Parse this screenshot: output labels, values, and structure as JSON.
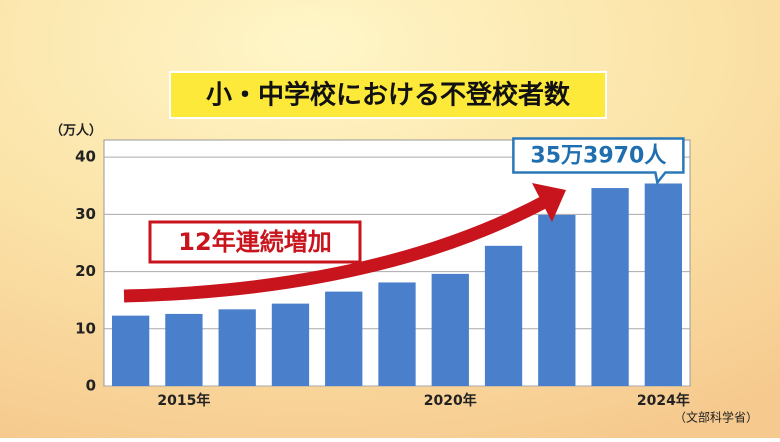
{
  "chart_data": {
    "type": "bar",
    "title": "小・中学校における不登校者数",
    "y_axis_label": "（万人）",
    "annotation": "12年連続増加",
    "source": "（文部科学省）",
    "categories": [
      null,
      "2015年",
      null,
      null,
      null,
      null,
      "2020年",
      null,
      null,
      null,
      "2024年"
    ],
    "values": [
      12.3,
      12.6,
      13.4,
      14.4,
      16.5,
      18.1,
      19.6,
      24.5,
      29.9,
      34.6,
      35.397
    ],
    "value_labels": [
      null,
      null,
      null,
      null,
      null,
      null,
      null,
      null,
      null,
      null,
      "35万3970人"
    ],
    "color": "#4a7fcb",
    "ylim": [
      0,
      43
    ],
    "yticks": [
      0,
      10,
      20,
      30,
      40
    ],
    "grid": true
  }
}
